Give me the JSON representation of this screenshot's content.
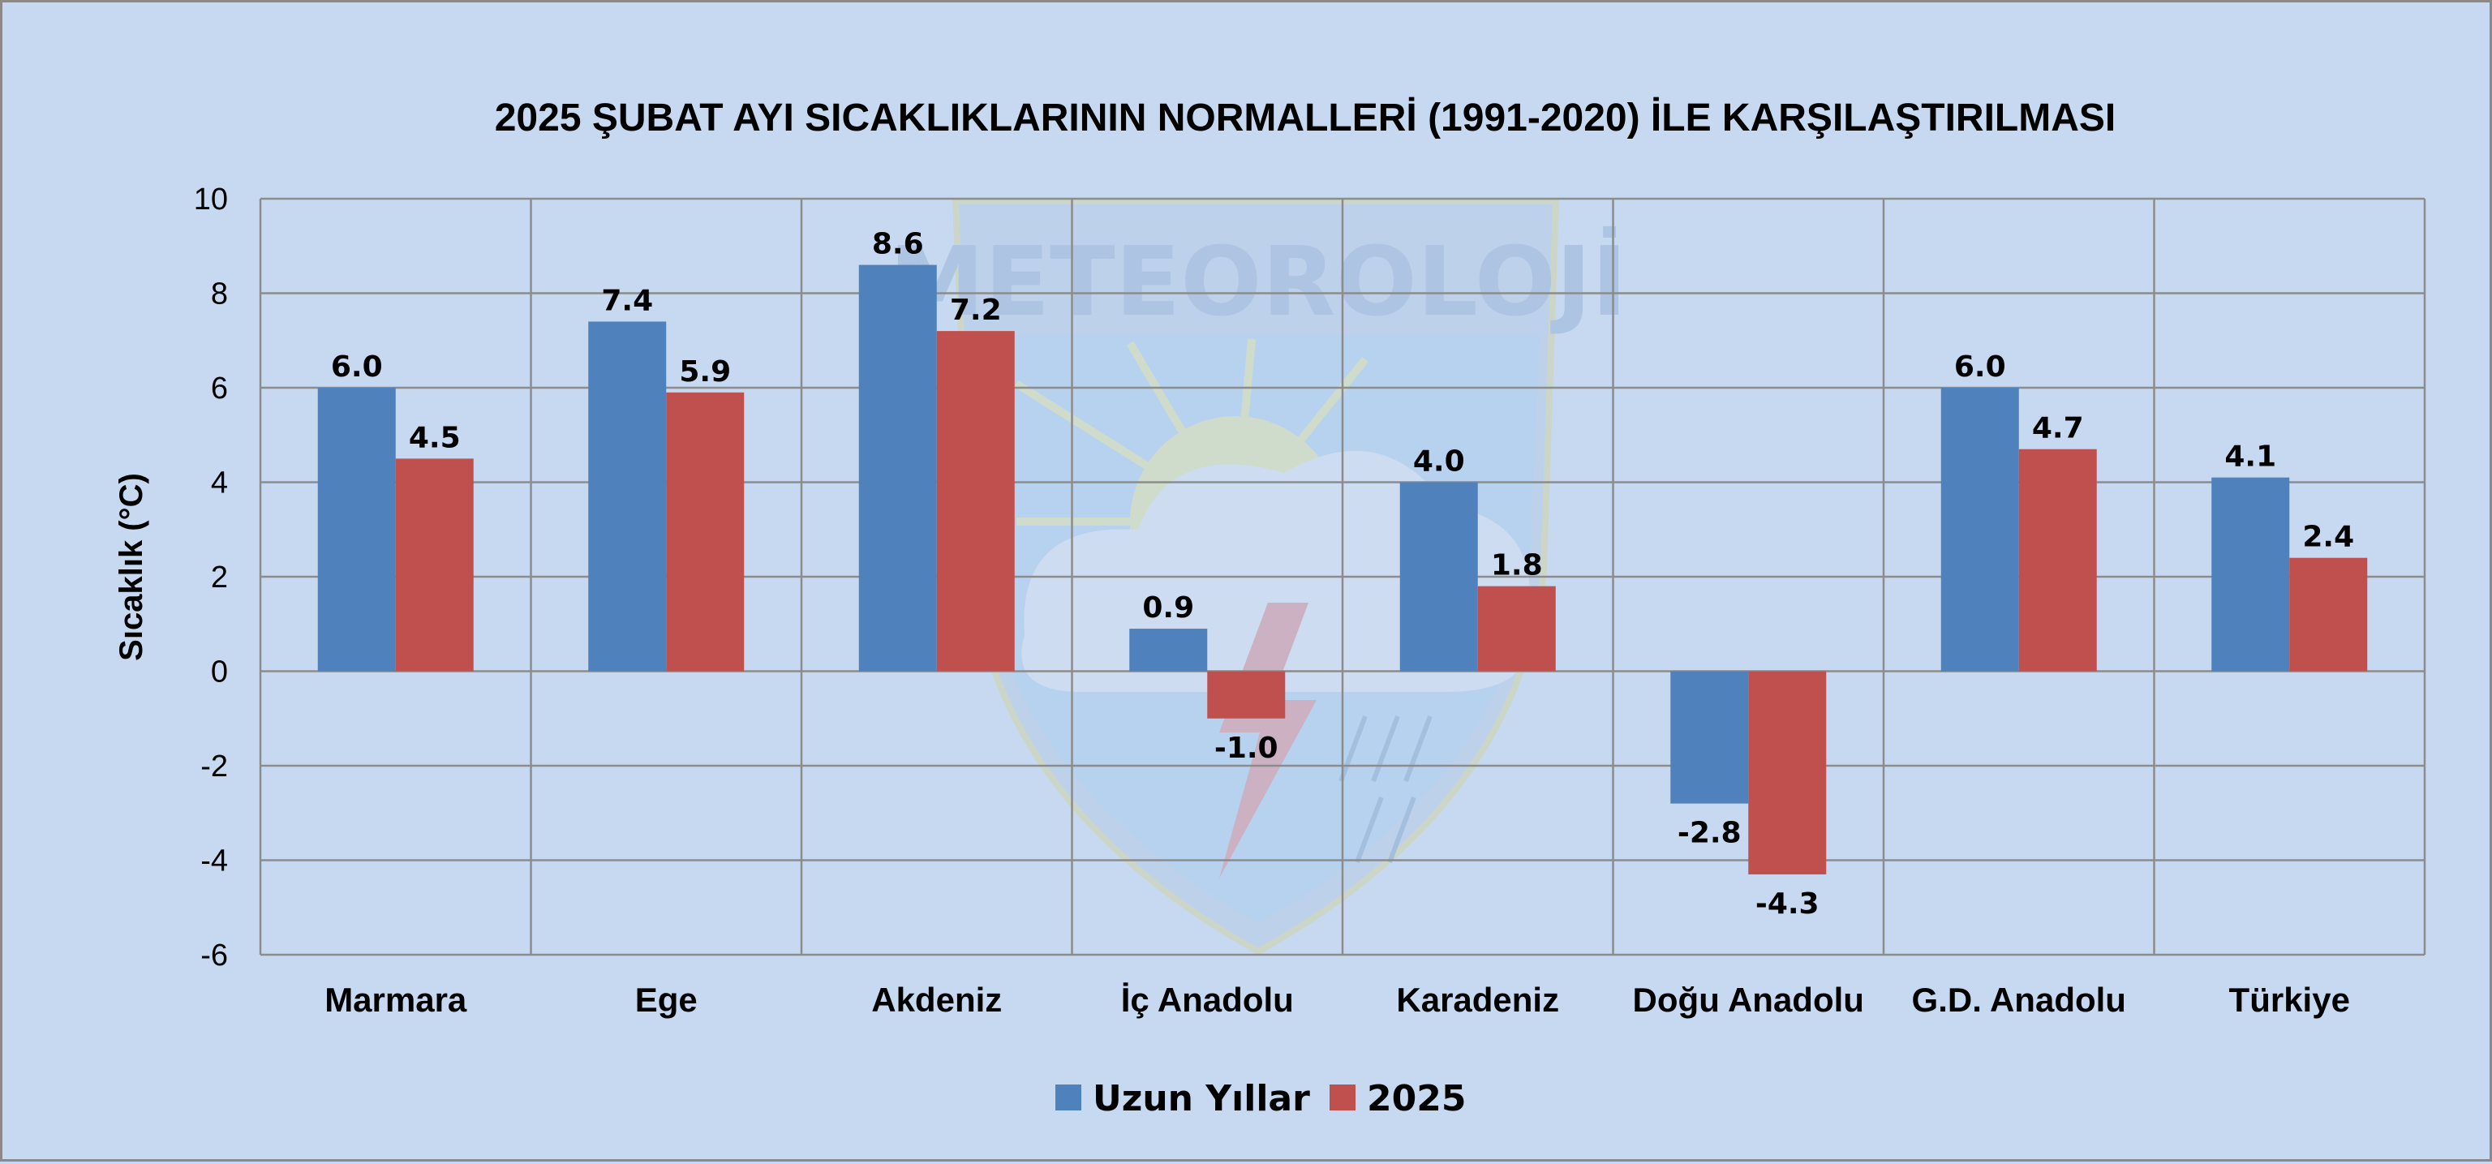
{
  "chart_data": {
    "type": "bar",
    "title": "2025 ŞUBAT AYI SICAKLIKLARININ NORMALLERİ (1991-2020) İLE KARŞILAŞTIRILMASI",
    "ylabel": "Sıcaklık (°C)",
    "xlabel": "",
    "ylim": [
      -6,
      10
    ],
    "yticks": [
      -6,
      -4,
      -2,
      0,
      2,
      4,
      6,
      8,
      10
    ],
    "grid": true,
    "legend_position": "bottom",
    "categories": [
      "Marmara",
      "Ege",
      "Akdeniz",
      "İç Anadolu",
      "Karadeniz",
      "Doğu Anadolu",
      "G.D. Anadolu",
      "Türkiye"
    ],
    "series": [
      {
        "name": "Uzun Yıllar",
        "color": "#4f81bd",
        "values": [
          6.0,
          7.4,
          8.6,
          0.9,
          4.0,
          -2.8,
          6.0,
          4.1
        ]
      },
      {
        "name": "2025",
        "color": "#c0504d",
        "values": [
          4.5,
          5.9,
          7.2,
          -1.0,
          1.8,
          -4.3,
          4.7,
          2.4
        ]
      }
    ]
  },
  "watermark": {
    "text": "METEOROLOJİ"
  },
  "colors": {
    "background": "#c6d9f1",
    "grid": "#8c8c8c",
    "frame": "#8a8a8a"
  }
}
